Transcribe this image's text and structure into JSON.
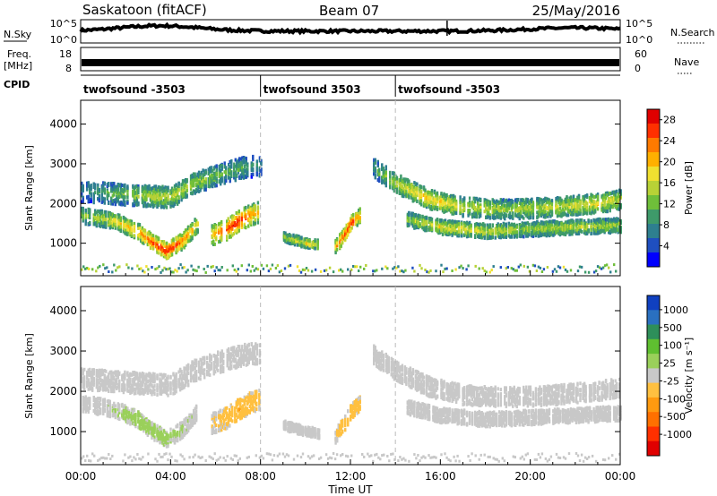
{
  "header": {
    "station": "Saskatoon (fitACF)",
    "beam": "Beam 07",
    "date": "25/May/2016"
  },
  "top_panels": {
    "nsky_label": "N.Sky",
    "nsky_ticks": [
      "10^5",
      "10^0"
    ],
    "nsearch_label": "N.Search",
    "nsearch_ticks": [
      "10^5",
      "10^0"
    ],
    "freq_label": "Freq.",
    "freq_unit": "[MHz]",
    "freq_ticks": [
      "18",
      "8"
    ],
    "nave_label": "Nave",
    "nave_ticks": [
      "60",
      "0"
    ],
    "cpid_label": "CPID",
    "cpid_segments": [
      {
        "name": "twofsound -3503",
        "start_hour": 0,
        "end_hour": 8
      },
      {
        "name": "twofsound 3503",
        "start_hour": 8,
        "end_hour": 14
      },
      {
        "name": "twofsound -3503",
        "start_hour": 14,
        "end_hour": 24
      }
    ]
  },
  "chart_data": [
    {
      "type": "heatmap",
      "parameter": "Power",
      "ylabel": "Slant Range [km]",
      "xlabel": "Time UT",
      "x_ticks": [
        "00:00",
        "04:00",
        "08:00",
        "12:00",
        "16:00",
        "20:00",
        "00:00"
      ],
      "xlim_hours": [
        0,
        24
      ],
      "y_ticks": [
        1000,
        2000,
        3000,
        4000
      ],
      "ylim_km": [
        180,
        4600
      ],
      "colorbar": {
        "label": "Power [dB]",
        "ticks": [
          4,
          8,
          12,
          16,
          20,
          24,
          28
        ],
        "range": [
          0,
          30
        ],
        "colors": [
          "#0000ff",
          "#1f4fc0",
          "#2e7f8f",
          "#3e9a6a",
          "#6fbf3a",
          "#b8d236",
          "#f0e030",
          "#ffb000",
          "#ff7a00",
          "#ff3000",
          "#e00000"
        ]
      },
      "echo_bands": [
        {
          "t": [
            0.0,
            2.5,
            4.0,
            5.0,
            6.0,
            7.2,
            8.0
          ],
          "r": [
            2300,
            2200,
            2150,
            2500,
            2700,
            2900,
            2950
          ],
          "w": 260,
          "p": [
            8,
            14,
            16,
            14,
            12,
            10,
            8
          ]
        },
        {
          "t": [
            0.0,
            1.5,
            2.5,
            3.2,
            3.8,
            4.5,
            5.2
          ],
          "r": [
            1700,
            1550,
            1300,
            1000,
            800,
            1050,
            1500
          ],
          "w": 200,
          "p": [
            12,
            18,
            22,
            26,
            28,
            24,
            18
          ]
        },
        {
          "t": [
            5.8,
            6.5,
            7.0,
            7.5,
            8.0
          ],
          "r": [
            1200,
            1350,
            1550,
            1700,
            1800
          ],
          "w": 260,
          "p": [
            20,
            26,
            28,
            24,
            18
          ]
        },
        {
          "t": [
            9.0,
            10.0,
            10.6
          ],
          "r": [
            1150,
            1000,
            950
          ],
          "w": 120,
          "p": [
            14,
            18,
            16
          ]
        },
        {
          "t": [
            11.3,
            11.7,
            12.0,
            12.4
          ],
          "r": [
            900,
            1200,
            1500,
            1700
          ],
          "w": 180,
          "p": [
            20,
            26,
            28,
            22
          ]
        },
        {
          "t": [
            13.0,
            14.0,
            15.5,
            17.0,
            19.0,
            21.0,
            23.0,
            24.0
          ],
          "r": [
            2900,
            2500,
            2100,
            1900,
            1850,
            1900,
            2000,
            2100
          ],
          "w": 240,
          "p": [
            10,
            16,
            20,
            16,
            14,
            16,
            18,
            16
          ]
        },
        {
          "t": [
            14.5,
            16.0,
            18.0,
            20.0,
            22.0,
            24.0
          ],
          "r": [
            1600,
            1400,
            1300,
            1350,
            1400,
            1450
          ],
          "w": 180,
          "p": [
            14,
            18,
            16,
            14,
            16,
            14
          ]
        }
      ]
    },
    {
      "type": "heatmap",
      "parameter": "Velocity",
      "ylabel": "Slant Range [km]",
      "xlabel": "Time UT",
      "x_ticks": [
        "00:00",
        "04:00",
        "08:00",
        "12:00",
        "16:00",
        "20:00",
        "00:00"
      ],
      "xlim_hours": [
        0,
        24
      ],
      "y_ticks": [
        1000,
        2000,
        3000,
        4000
      ],
      "ylim_km": [
        180,
        4600
      ],
      "colorbar": {
        "label": "Velocity [m s⁻¹]",
        "ticks": [
          1000,
          500,
          100,
          25,
          -25,
          -100,
          -500,
          -1000
        ],
        "range": [
          -1200,
          1200
        ],
        "colors": [
          "#1040c0",
          "#2a70c0",
          "#2e8f5a",
          "#5fbf30",
          "#9ad05a",
          "#c8c8c8",
          "#ffc040",
          "#ff9a10",
          "#ff7000",
          "#ff3000",
          "#e00000"
        ]
      },
      "echo_bands": [
        {
          "t": [
            0.0,
            2.5,
            4.0,
            5.0,
            6.0,
            7.2,
            8.0
          ],
          "r": [
            2300,
            2200,
            2150,
            2500,
            2700,
            2900,
            2950
          ],
          "w": 260,
          "v": [
            0,
            0,
            0,
            0,
            0,
            0,
            0
          ]
        },
        {
          "t": [
            0.0,
            1.5,
            2.5,
            3.2,
            3.8,
            4.5,
            5.2
          ],
          "r": [
            1700,
            1550,
            1300,
            1000,
            800,
            1050,
            1500
          ],
          "w": 200,
          "v": [
            0,
            120,
            200,
            180,
            160,
            120,
            60
          ]
        },
        {
          "t": [
            5.8,
            6.5,
            7.0,
            7.5,
            8.0
          ],
          "r": [
            1200,
            1350,
            1550,
            1700,
            1800
          ],
          "w": 260,
          "v": [
            -120,
            -220,
            -300,
            -250,
            -150
          ]
        },
        {
          "t": [
            9.0,
            10.0,
            10.6
          ],
          "r": [
            1150,
            1000,
            950
          ],
          "w": 120,
          "v": [
            0,
            0,
            0
          ]
        },
        {
          "t": [
            11.3,
            11.7,
            12.0,
            12.4
          ],
          "r": [
            900,
            1200,
            1500,
            1700
          ],
          "w": 180,
          "v": [
            -120,
            -250,
            -300,
            -200
          ]
        },
        {
          "t": [
            13.0,
            14.0,
            15.5,
            17.0,
            19.0,
            21.0,
            23.0,
            24.0
          ],
          "r": [
            2900,
            2500,
            2100,
            1900,
            1850,
            1900,
            2000,
            2100
          ],
          "w": 240,
          "v": [
            0,
            0,
            0,
            0,
            0,
            0,
            0,
            0
          ]
        },
        {
          "t": [
            14.5,
            16.0,
            18.0,
            20.0,
            22.0,
            24.0
          ],
          "r": [
            1600,
            1400,
            1300,
            1350,
            1400,
            1450
          ],
          "w": 180,
          "v": [
            0,
            0,
            0,
            0,
            0,
            0
          ]
        }
      ]
    }
  ]
}
